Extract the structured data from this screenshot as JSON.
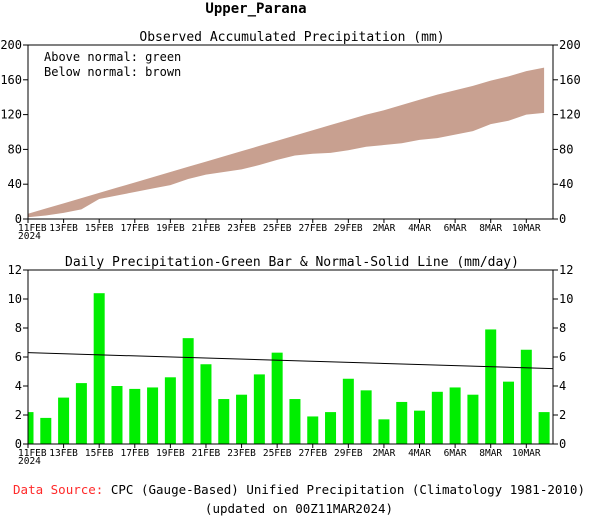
{
  "header": {
    "title": "Upper_Parana"
  },
  "footer": {
    "source_label": "Data Source:",
    "source_text": "CPC (Gauge-Based) Unified Precipitation (Climatology 1981-2010)",
    "updated": "(updated on 00Z11MAR2024)"
  },
  "colors": {
    "envelope": "#c8a090",
    "bars": "#00ee00",
    "normal_line": "#000000",
    "source_label": "#ff2a2a"
  },
  "chart_data": [
    {
      "type": "area",
      "title": "Observed Accumulated Precipitation (mm)",
      "legend": [
        "Above normal: green",
        "Below normal: brown"
      ],
      "legend_placement": "top-left",
      "x_tick_labels": [
        "11FEB",
        "13FEB",
        "15FEB",
        "17FEB",
        "19FEB",
        "21FEB",
        "23FEB",
        "25FEB",
        "27FEB",
        "29FEB",
        "2MAR",
        "4MAR",
        "6MAR",
        "8MAR",
        "10MAR"
      ],
      "x_year_label": "2024",
      "ylim": [
        0,
        200
      ],
      "y_ticks": [
        0,
        40,
        80,
        120,
        160,
        200
      ],
      "x": [
        "11FEB",
        "12FEB",
        "13FEB",
        "14FEB",
        "15FEB",
        "16FEB",
        "17FEB",
        "18FEB",
        "19FEB",
        "20FEB",
        "21FEB",
        "22FEB",
        "23FEB",
        "24FEB",
        "25FEB",
        "26FEB",
        "27FEB",
        "28FEB",
        "29FEB",
        "1MAR",
        "2MAR",
        "3MAR",
        "4MAR",
        "5MAR",
        "6MAR",
        "7MAR",
        "8MAR",
        "9MAR",
        "10MAR",
        "11MAR"
      ],
      "series": [
        {
          "name": "Normal",
          "values": [
            6,
            12,
            18,
            24,
            30,
            36,
            42,
            48,
            54,
            60,
            66,
            72,
            78,
            84,
            90,
            96,
            102,
            108,
            114,
            120,
            125,
            131,
            137,
            143,
            148,
            153,
            159,
            164,
            170,
            174
          ]
        },
        {
          "name": "Observed",
          "values": [
            2,
            4,
            7,
            11,
            23,
            27,
            31,
            35,
            39,
            46,
            51,
            54,
            57,
            62,
            68,
            73,
            75,
            76,
            79,
            83,
            85,
            87,
            91,
            93,
            97,
            101,
            109,
            113,
            120,
            122
          ]
        }
      ]
    },
    {
      "type": "bar",
      "title": "Daily Precipitation-Green Bar & Normal-Solid Line (mm/day)",
      "x_tick_labels": [
        "11FEB",
        "13FEB",
        "15FEB",
        "17FEB",
        "19FEB",
        "21FEB",
        "23FEB",
        "25FEB",
        "27FEB",
        "29FEB",
        "2MAR",
        "4MAR",
        "6MAR",
        "8MAR",
        "10MAR"
      ],
      "x_year_label": "2024",
      "ylim": [
        0,
        12
      ],
      "y_ticks": [
        0,
        2,
        4,
        6,
        8,
        10,
        12
      ],
      "categories": [
        "11FEB",
        "12FEB",
        "13FEB",
        "14FEB",
        "15FEB",
        "16FEB",
        "17FEB",
        "18FEB",
        "19FEB",
        "20FEB",
        "21FEB",
        "22FEB",
        "23FEB",
        "24FEB",
        "25FEB",
        "26FEB",
        "27FEB",
        "28FEB",
        "29FEB",
        "1MAR",
        "2MAR",
        "3MAR",
        "4MAR",
        "5MAR",
        "6MAR",
        "7MAR",
        "8MAR",
        "9MAR",
        "10MAR",
        "11MAR"
      ],
      "values": [
        2.2,
        1.8,
        3.2,
        4.2,
        10.4,
        4.0,
        3.8,
        3.9,
        4.6,
        7.3,
        5.5,
        3.1,
        3.4,
        4.8,
        6.3,
        3.1,
        1.9,
        2.2,
        4.5,
        3.7,
        1.7,
        2.9,
        2.3,
        3.6,
        3.9,
        3.4,
        7.9,
        4.3,
        6.5,
        2.2
      ],
      "normal_line": {
        "start": 6.3,
        "end": 5.2
      }
    }
  ]
}
